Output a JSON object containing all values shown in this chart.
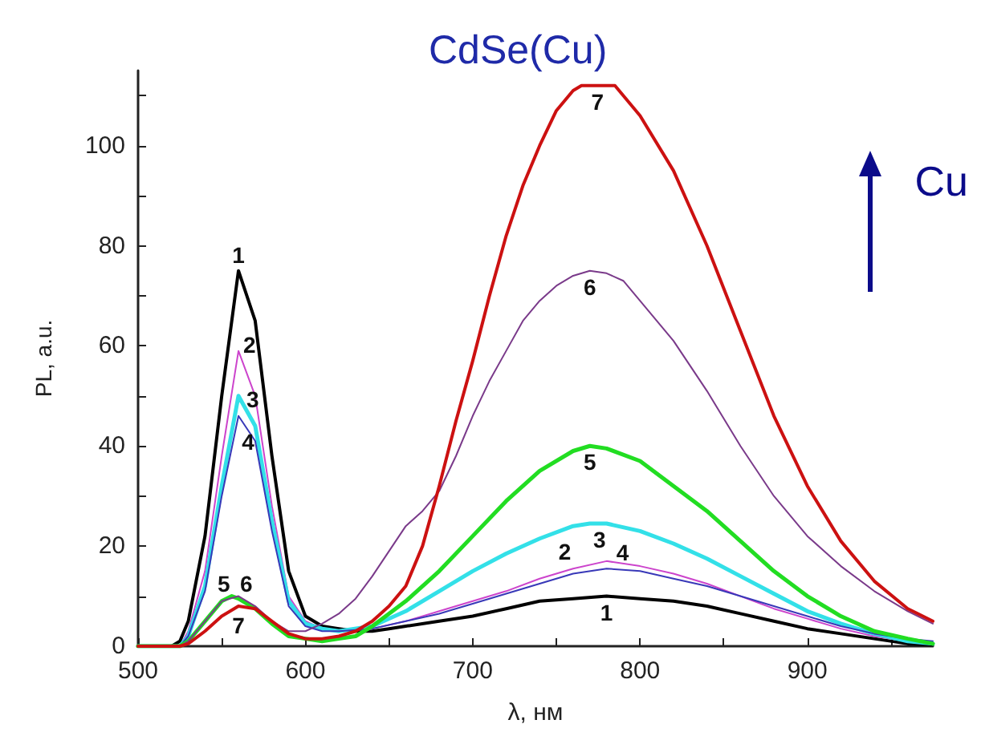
{
  "chart_data": {
    "type": "line",
    "title": "CdSe(Cu)",
    "xlabel": "λ, нм",
    "ylabel": "PL, a.u.",
    "annotations": [
      "Cu"
    ],
    "xlim": [
      500,
      975
    ],
    "ylim": [
      0,
      115
    ],
    "xticks": [
      500,
      {
        "value": 550,
        "label": null
      },
      600,
      {
        "value": 650,
        "label": null
      },
      700,
      {
        "value": 750,
        "label": null
      },
      800,
      {
        "value": 850,
        "label": null
      },
      900,
      {
        "value": 950,
        "label": null
      }
    ],
    "yticks": [
      0,
      {
        "value": 10,
        "label": null
      },
      20,
      {
        "value": 30,
        "label": null
      },
      40,
      {
        "value": 50,
        "label": null
      },
      60,
      {
        "value": 70,
        "label": null
      },
      80,
      {
        "value": 90,
        "label": null
      },
      100,
      {
        "value": 110,
        "label": null
      }
    ],
    "grid": false,
    "legend": false,
    "marker": "none",
    "line_style": "solid",
    "series": [
      {
        "name": "1",
        "color": "#000000",
        "x": [
          500,
          520,
          525,
          530,
          540,
          550,
          560,
          570,
          580,
          590,
          600,
          610,
          620,
          630,
          640,
          650,
          660,
          680,
          700,
          720,
          740,
          760,
          780,
          800,
          820,
          840,
          860,
          880,
          900,
          920,
          940,
          960,
          975
        ],
        "values": [
          0,
          0,
          1,
          5,
          22,
          50,
          75,
          65,
          38,
          15,
          6,
          4,
          3.5,
          3,
          3,
          3.5,
          4,
          5,
          6,
          7.5,
          9,
          9.5,
          10,
          9.5,
          9,
          8,
          6.5,
          5,
          3.5,
          2.5,
          1.5,
          0.5,
          0.3
        ]
      },
      {
        "name": "2",
        "color": "#cc44cc",
        "x": [
          500,
          525,
          530,
          540,
          550,
          560,
          570,
          580,
          590,
          600,
          610,
          620,
          640,
          660,
          680,
          700,
          720,
          740,
          760,
          780,
          800,
          820,
          840,
          860,
          880,
          900,
          920,
          940,
          960,
          975
        ],
        "values": [
          0,
          0,
          3,
          15,
          38,
          59,
          50,
          28,
          10,
          5,
          3.5,
          3,
          3.5,
          5,
          7,
          9,
          11,
          13.5,
          15.5,
          17,
          16,
          14.5,
          12.5,
          10,
          7.5,
          5.5,
          3.5,
          2,
          1,
          0.5
        ]
      },
      {
        "name": "3",
        "color": "#33e0e8",
        "x": [
          500,
          525,
          530,
          540,
          550,
          560,
          570,
          580,
          590,
          600,
          610,
          620,
          640,
          660,
          680,
          700,
          720,
          740,
          760,
          770,
          780,
          800,
          820,
          840,
          860,
          880,
          900,
          920,
          940,
          960,
          975
        ],
        "values": [
          0,
          0,
          2,
          12,
          32,
          50,
          44,
          25,
          9,
          4.5,
          3.5,
          3,
          4,
          7,
          11,
          15,
          18.5,
          21.5,
          24,
          24.5,
          24.5,
          23,
          20.5,
          17.5,
          14,
          10.5,
          7,
          4.5,
          2.5,
          1,
          0.5
        ]
      },
      {
        "name": "4",
        "color": "#3838b8",
        "x": [
          500,
          525,
          530,
          540,
          550,
          560,
          570,
          580,
          590,
          600,
          610,
          620,
          640,
          660,
          680,
          700,
          720,
          740,
          760,
          780,
          800,
          820,
          840,
          860,
          880,
          900,
          920,
          940,
          960,
          975
        ],
        "values": [
          0,
          0,
          2,
          11,
          30,
          46,
          41,
          23,
          8,
          4,
          3,
          3,
          3.5,
          5,
          6.5,
          8.5,
          10.5,
          12.5,
          14.5,
          15.5,
          15,
          13.5,
          12,
          10,
          8,
          6,
          4,
          2.5,
          1.5,
          1
        ]
      },
      {
        "name": "5",
        "color": "#22dd22",
        "x": [
          500,
          525,
          530,
          540,
          550,
          556,
          560,
          570,
          580,
          590,
          600,
          610,
          620,
          630,
          640,
          660,
          680,
          700,
          720,
          740,
          760,
          770,
          780,
          800,
          820,
          840,
          860,
          880,
          900,
          920,
          940,
          960,
          975
        ],
        "values": [
          0,
          0,
          1,
          5,
          9,
          10,
          9.5,
          7.5,
          4.5,
          2,
          1.5,
          1,
          1.5,
          2,
          4,
          9,
          15,
          22,
          29,
          35,
          39,
          40,
          39.5,
          37,
          32,
          27,
          21,
          15,
          10,
          6,
          3,
          1.5,
          0.5
        ]
      },
      {
        "name": "6",
        "color": "#7a3a8a",
        "x": [
          500,
          525,
          530,
          540,
          550,
          560,
          570,
          580,
          590,
          600,
          610,
          620,
          630,
          640,
          650,
          660,
          670,
          680,
          690,
          700,
          710,
          720,
          730,
          740,
          750,
          760,
          770,
          780,
          790,
          800,
          820,
          840,
          860,
          880,
          900,
          920,
          940,
          960,
          975
        ],
        "values": [
          0,
          0,
          1,
          5,
          9,
          10,
          8,
          5,
          3,
          3,
          4.5,
          6.5,
          9.5,
          14,
          19,
          24,
          27,
          31,
          38,
          46,
          53,
          59,
          65,
          69,
          72,
          74,
          75,
          74.5,
          73,
          69,
          61,
          51,
          40,
          30,
          22,
          16,
          11,
          7,
          4.5
        ]
      },
      {
        "name": "7",
        "color": "#cc1111",
        "x": [
          500,
          525,
          530,
          540,
          550,
          560,
          570,
          580,
          590,
          600,
          610,
          620,
          630,
          640,
          650,
          660,
          670,
          680,
          690,
          700,
          710,
          720,
          730,
          740,
          750,
          760,
          765,
          775,
          785,
          800,
          820,
          840,
          860,
          880,
          900,
          920,
          940,
          960,
          975
        ],
        "values": [
          0,
          0,
          0.5,
          3,
          6,
          8,
          7.5,
          5,
          2.5,
          1.5,
          1.5,
          2,
          3,
          5,
          8,
          12,
          20,
          32,
          45,
          57,
          70,
          82,
          92,
          100,
          107,
          111,
          112,
          112,
          112,
          106,
          95,
          80,
          63,
          46,
          32,
          21,
          13,
          7.5,
          5
        ]
      }
    ]
  }
}
